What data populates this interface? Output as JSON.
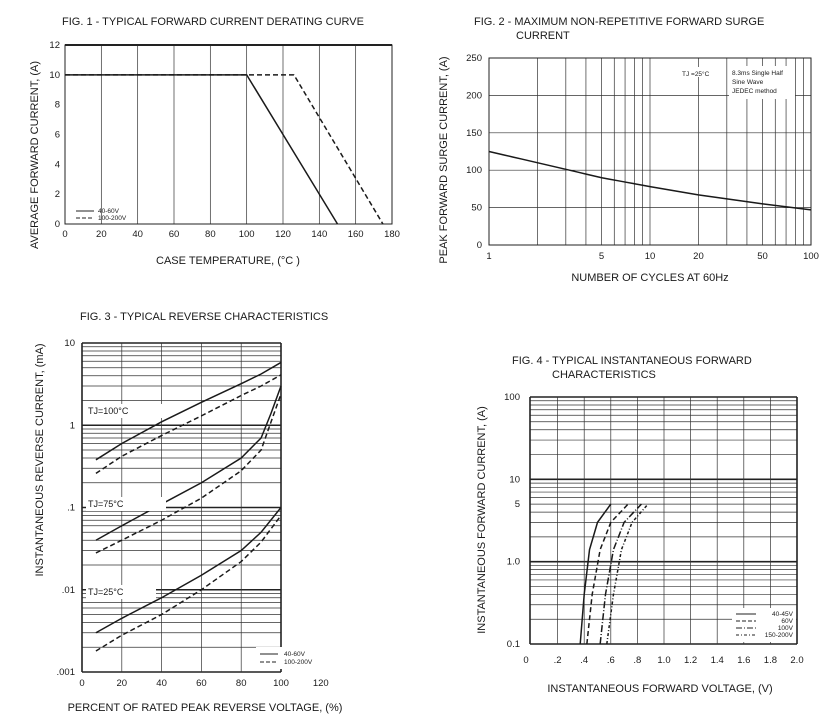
{
  "chart_data": [
    {
      "type": "line",
      "title": "FIG. 1 - TYPICAL FORWARD CURRENT DERATING CURVE",
      "xlabel": "CASE TEMPERATURE, (°C )",
      "ylabel": "AVERAGE FORWARD CURRENT, (A)",
      "xlim": [
        0,
        180
      ],
      "ylim": [
        0,
        12
      ],
      "xticks": [
        "0",
        "20",
        "40",
        "60",
        "80",
        "100",
        "120",
        "140",
        "160",
        "180"
      ],
      "yticks": [
        "0",
        "2",
        "4",
        "6",
        "8",
        "10",
        "12"
      ],
      "grid": "vertical",
      "legend": "bottom-left",
      "series": [
        {
          "name": "40-60V",
          "dash": "solid",
          "points": [
            [
              0,
              10
            ],
            [
              100,
              10
            ],
            [
              150,
              0
            ]
          ]
        },
        {
          "name": "100-200V",
          "dash": "dashed",
          "points": [
            [
              0,
              10
            ],
            [
              126,
              10
            ],
            [
              175,
              0
            ]
          ]
        }
      ]
    },
    {
      "type": "line",
      "title": "FIG. 2 - MAXIMUM NON-REPETITIVE FORWARD SURGE",
      "title2": "CURRENT",
      "xlabel": "NUMBER OF CYCLES AT 60Hz",
      "ylabel": "PEAK FORWARD SURGE CURRENT, (A)",
      "xscale": "log",
      "xlim": [
        1,
        100
      ],
      "ylim": [
        0,
        250
      ],
      "xticks": [
        "1",
        "5",
        "10",
        "20",
        "50",
        "100"
      ],
      "yticks": [
        "0",
        "50",
        "100",
        "150",
        "200",
        "250"
      ],
      "grid": "both",
      "annotations": [
        "TJ =25°C",
        "8.3ms Single Half",
        "Sine Wave",
        "JEDEC method"
      ],
      "series": [
        {
          "name": "",
          "points": [
            [
              1,
              125
            ],
            [
              2,
              110
            ],
            [
              5,
              90
            ],
            [
              10,
              78
            ],
            [
              20,
              67
            ],
            [
              50,
              55
            ],
            [
              100,
              47
            ]
          ]
        }
      ]
    },
    {
      "type": "line",
      "title": "FIG. 3 - TYPICAL REVERSE CHARACTERISTICS",
      "xlabel": "PERCENT OF RATED PEAK REVERSE VOLTAGE, (%)",
      "ylabel": "INSTANTANEOUS REVERSE CURRENT, (mA)",
      "yscale": "log",
      "xlim": [
        0,
        120
      ],
      "ylim": [
        0.001,
        10
      ],
      "xticks": [
        "0",
        "20",
        "40",
        "60",
        "80",
        "100",
        "120"
      ],
      "yticks": [
        ".001",
        ".01",
        ".1",
        "1",
        "10"
      ],
      "grid": "both",
      "legend": "bottom-right",
      "labels": [
        "TJ=100°C",
        "TJ=75°C",
        "TJ=25°C"
      ],
      "legend_entries": [
        "40-60V",
        "100-200V"
      ],
      "series": [
        {
          "name": "40-60V",
          "dash": "solid",
          "points": [
            [
              7,
              0.38
            ],
            [
              20,
              0.6
            ],
            [
              40,
              1.1
            ],
            [
              60,
              1.9
            ],
            [
              80,
              3.2
            ],
            [
              90,
              4.2
            ],
            [
              100,
              5.8
            ]
          ]
        },
        {
          "name": "100-200V",
          "dash": "dashed",
          "points": [
            [
              7,
              0.26
            ],
            [
              20,
              0.42
            ],
            [
              40,
              0.75
            ],
            [
              60,
              1.3
            ],
            [
              80,
              2.3
            ],
            [
              90,
              3.0
            ],
            [
              100,
              4.1
            ]
          ]
        },
        {
          "name": "40-60V",
          "dash": "solid",
          "points": [
            [
              7,
              0.04
            ],
            [
              20,
              0.06
            ],
            [
              40,
              0.11
            ],
            [
              60,
              0.2
            ],
            [
              80,
              0.4
            ],
            [
              90,
              0.7
            ],
            [
              95,
              1.4
            ],
            [
              100,
              3.0
            ]
          ]
        },
        {
          "name": "100-200V",
          "dash": "dashed",
          "points": [
            [
              7,
              0.028
            ],
            [
              20,
              0.04
            ],
            [
              40,
              0.07
            ],
            [
              60,
              0.13
            ],
            [
              80,
              0.28
            ],
            [
              90,
              0.5
            ],
            [
              95,
              1.1
            ],
            [
              100,
              2.4
            ]
          ]
        },
        {
          "name": "40-60V",
          "dash": "solid",
          "points": [
            [
              7,
              0.003
            ],
            [
              20,
              0.0045
            ],
            [
              40,
              0.008
            ],
            [
              60,
              0.015
            ],
            [
              80,
              0.03
            ],
            [
              90,
              0.05
            ],
            [
              100,
              0.1
            ]
          ]
        },
        {
          "name": "100-200V",
          "dash": "dashed",
          "points": [
            [
              7,
              0.0018
            ],
            [
              20,
              0.0028
            ],
            [
              40,
              0.005
            ],
            [
              60,
              0.01
            ],
            [
              80,
              0.022
            ],
            [
              90,
              0.038
            ],
            [
              100,
              0.08
            ]
          ]
        }
      ]
    },
    {
      "type": "line",
      "title": "FIG. 4 - TYPICAL INSTANTANEOUS FORWARD",
      "title2": "CHARACTERISTICS",
      "xlabel": "INSTANTANEOUS FORWARD VOLTAGE, (V)",
      "ylabel": "INSTANTANEOUS FORWARD CURRENT, (A)",
      "yscale": "log",
      "xlim": [
        0,
        2.0
      ],
      "ylim": [
        0.1,
        100
      ],
      "xticks": [
        "0",
        ".2",
        ".4",
        ".6",
        ".8",
        "1.0",
        "1.2",
        "1.4",
        "1.6",
        "1.8",
        "2.0"
      ],
      "yticks": [
        "0.1",
        "1.0",
        "5",
        "10",
        "100"
      ],
      "grid": "both",
      "legend": "bottom-right",
      "series": [
        {
          "name": "40-45V",
          "dash": "solid",
          "points": [
            [
              0.37,
              0.1
            ],
            [
              0.4,
              0.4
            ],
            [
              0.44,
              1.4
            ],
            [
              0.5,
              3
            ],
            [
              0.6,
              5
            ]
          ]
        },
        {
          "name": "60V",
          "dash": "dashed",
          "points": [
            [
              0.42,
              0.1
            ],
            [
              0.46,
              0.4
            ],
            [
              0.52,
              1.4
            ],
            [
              0.6,
              3
            ],
            [
              0.73,
              5
            ]
          ]
        },
        {
          "name": "100V",
          "dash": "dashdot",
          "points": [
            [
              0.52,
              0.1
            ],
            [
              0.56,
              0.4
            ],
            [
              0.62,
              1.4
            ],
            [
              0.7,
              3
            ],
            [
              0.83,
              5
            ]
          ]
        },
        {
          "name": "150-200V",
          "dash": "dashdot2",
          "points": [
            [
              0.57,
              0.1
            ],
            [
              0.62,
              0.4
            ],
            [
              0.68,
              1.4
            ],
            [
              0.76,
              3
            ],
            [
              0.88,
              5
            ]
          ]
        }
      ]
    }
  ]
}
